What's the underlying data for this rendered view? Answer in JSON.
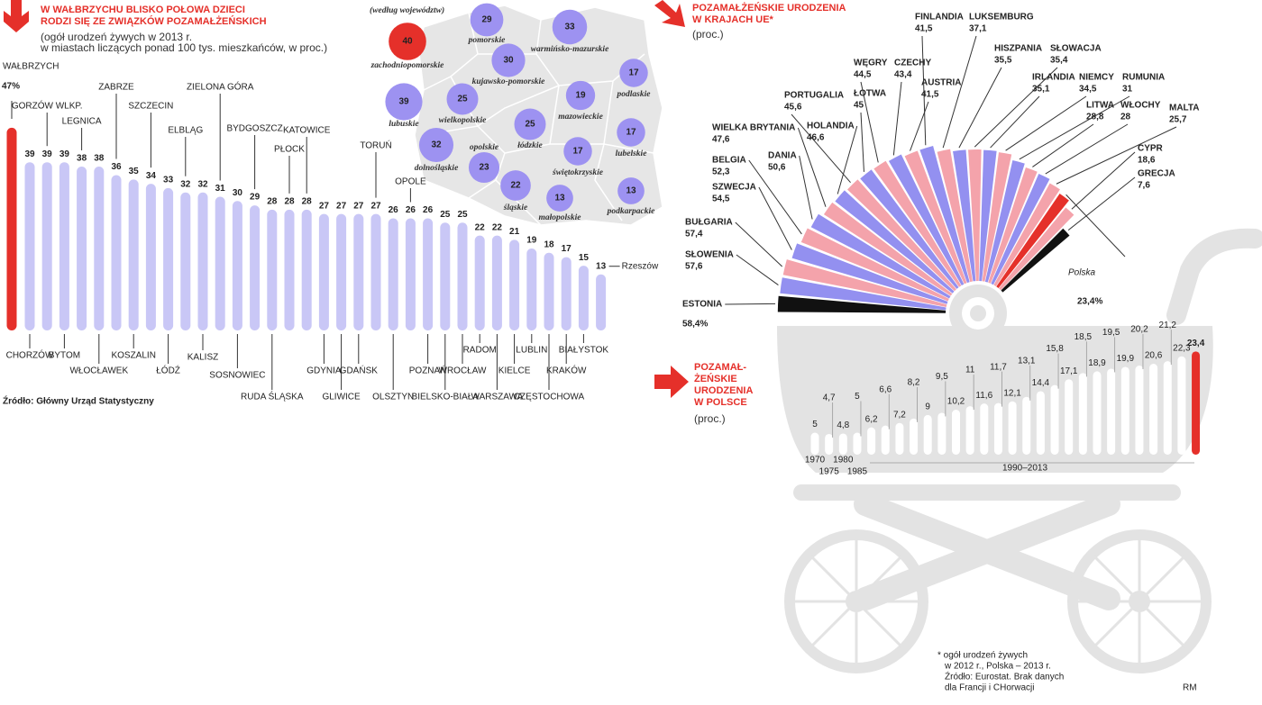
{
  "chart_data": [
    {
      "type": "bar",
      "title": [
        "W WAŁBRZYCHU BLISKO POŁOWA DZIECI",
        "RODZI SIĘ ZE ZWIĄZKÓW POZAMAŁŻEŃSKICH"
      ],
      "subtitle": [
        "(ogół urodzeń żywych w 2013 r.",
        "w miastach liczących ponad 100 tys. mieszkańców, w proc.)"
      ],
      "categories": [
        "WAŁBRZYCH",
        "CHORZÓW",
        "GORZÓW WLKP.",
        "BYTOM",
        "LEGNICA",
        "WŁOCŁAWEK",
        "ZABRZE",
        "KOSZALIN",
        "SZCZECIN",
        "ŁÓDŹ",
        "ELBLĄG",
        "KALISZ",
        "ZIELONA GÓRA",
        "SOSNOWIEC",
        "BYDGOSZCZ",
        "RUDA ŚLĄSKA",
        "PŁOCK",
        "KATOWICE",
        "GDYNIA",
        "GLIWICE",
        "GDAŃSK",
        "TORUŃ",
        "OLSZTYN",
        "OPOLE",
        "POZNAŃ",
        "BIELSKO-BIAŁA",
        "WROCŁAW",
        "RADOM",
        "WARSZAWA",
        "KIELCE",
        "LUBLIN",
        "CZĘSTOCHOWA",
        "KRAKÓW",
        "BIAŁYSTOK",
        "Rzeszów"
      ],
      "values": [
        47,
        39,
        39,
        39,
        38,
        38,
        36,
        35,
        34,
        33,
        32,
        32,
        31,
        30,
        29,
        28,
        28,
        28,
        27,
        27,
        27,
        27,
        26,
        26,
        26,
        25,
        25,
        22,
        22,
        21,
        19,
        18,
        17,
        15,
        13
      ],
      "value_labels": [
        "47%",
        "39",
        "39",
        "39",
        "38",
        "38",
        "36",
        "35",
        "34",
        "33",
        "32",
        "32",
        "31",
        "30",
        "29",
        "28",
        "28",
        "28",
        "27",
        "27",
        "27",
        "27",
        "26",
        "26",
        "26",
        "25",
        "25",
        "22",
        "22",
        "21",
        "19",
        "18",
        "17",
        "15",
        "13"
      ],
      "color": "#c9c7f6",
      "highlight": {
        "index": 0,
        "color": "#e5302a"
      },
      "source": "Źródło: Główny Urząd Statystyczny"
    },
    {
      "type": "map",
      "title": "(według województw)",
      "categories": [
        "zachodniopomorskie",
        "pomorskie",
        "warmińsko-mazurskie",
        "podlaskie",
        "kujawsko-pomorskie",
        "lubuskie",
        "wielkopolskie",
        "mazowieckie",
        "łódzkie",
        "lubelskie",
        "dolnośląskie",
        "opolskie",
        "świętokrzyskie",
        "śląskie",
        "małopolskie",
        "podkarpackie"
      ],
      "values": [
        40,
        29,
        33,
        17,
        30,
        39,
        25,
        19,
        25,
        17,
        32,
        23,
        17,
        22,
        13,
        13
      ],
      "colors": [
        "#e5302a",
        "#9d92f1",
        "#9d92f1",
        "#9d92f1",
        "#9d92f1",
        "#9d92f1",
        "#9d92f1",
        "#9d92f1",
        "#9d92f1",
        "#9d92f1",
        "#9d92f1",
        "#9d92f1",
        "#9d92f1",
        "#9d92f1",
        "#9d92f1",
        "#9d92f1"
      ]
    },
    {
      "type": "radial-bar",
      "title": [
        "POZAMAŁŻEŃSKIE URODZENIA",
        "W KRAJACH UE*"
      ],
      "subtitle": "(proc.)",
      "categories": [
        "ESTONIA",
        "SŁOWENIA",
        "BUŁGARIA",
        "SZWECJA",
        "BELGIA",
        "DANIA",
        "WIELKA BRYTANIA",
        "HOLANDIA",
        "PORTUGALIA",
        "ŁOTWA",
        "WĘGRY",
        "CZECHY",
        "AUSTRIA",
        "FINLANDIA",
        "LUKSEMBURG",
        "HISZPANIA",
        "SŁOWACJA",
        "IRLANDIA",
        "NIEMCY",
        "RUMUNIA",
        "LITWA",
        "WŁOCHY",
        "MALTA",
        "Polska",
        "CYPR",
        "GRECJA"
      ],
      "values": [
        58.4,
        57.6,
        57.4,
        54.5,
        52.3,
        50.6,
        47.6,
        46.6,
        45.6,
        45,
        44.5,
        43.4,
        41.5,
        41.5,
        37.1,
        35.5,
        35.4,
        35.1,
        34.5,
        31,
        28.8,
        28,
        25.7,
        23.4,
        18.6,
        7.6
      ],
      "value_labels": [
        "58,4%",
        "57,6",
        "57,4",
        "54,5",
        "52,3",
        "50,6",
        "47,6",
        "46,6",
        "45,6",
        "45",
        "44,5",
        "43,4",
        "41,5",
        "41,5",
        "37,1",
        "35,5",
        "35,4",
        "35,1",
        "34,5",
        "31",
        "28,8",
        "28",
        "25,7",
        "23,4%",
        "18,6",
        "7,6"
      ],
      "colors": [
        "#111111",
        "#9390f0",
        "#f4a3ab",
        "#9390f0",
        "#f4a3ab",
        "#9390f0",
        "#f4a3ab",
        "#9390f0",
        "#f4a3ab",
        "#9390f0",
        "#f4a3ab",
        "#9390f0",
        "#f4a3ab",
        "#9390f0",
        "#f4a3ab",
        "#9390f0",
        "#f4a3ab",
        "#9390f0",
        "#f4a3ab",
        "#9390f0",
        "#f4a3ab",
        "#9390f0",
        "#f4a3ab",
        "#e5302a",
        "#f4a3ab",
        "#111111"
      ]
    },
    {
      "type": "bar",
      "title": [
        "POZAMAŁ-",
        "ŻEŃSKIE",
        "URODZENIA",
        "W POLSCE"
      ],
      "subtitle": "(proc.)",
      "categories": [
        "1970",
        "1975",
        "1980",
        "1985",
        null,
        null,
        null,
        null,
        null,
        null,
        null,
        null,
        null,
        null,
        null,
        null,
        null,
        null,
        null,
        null,
        null,
        null,
        null,
        null,
        null,
        null,
        null,
        null
      ],
      "span_label": "1990–2013",
      "values": [
        5,
        4.7,
        4.8,
        5,
        6.2,
        6.6,
        7.2,
        8.2,
        9,
        9.5,
        10.2,
        11,
        11.6,
        11.7,
        12.1,
        13.1,
        14.4,
        15.8,
        17.1,
        18.5,
        18.9,
        19.5,
        19.9,
        20.2,
        20.6,
        21.2,
        22.3,
        23.4
      ],
      "value_labels": [
        "5",
        "4,7",
        "4,8",
        "5",
        "6,2",
        "6,6",
        "7,2",
        "8,2",
        "9",
        "9,5",
        "10,2",
        "11",
        "11,6",
        "11,7",
        "12,1",
        "13,1",
        "14,4",
        "15,8",
        "17,1",
        "18,5",
        "18,9",
        "19,5",
        "19,9",
        "20,2",
        "20,6",
        "21,2",
        "22,3",
        "23,4"
      ],
      "color": "#ffffff",
      "highlight": {
        "index": 27,
        "color": "#e5302a"
      }
    }
  ],
  "footnote": [
    "* ogół urodzeń żywych",
    "w 2012 r., Polska – 2013 r.",
    "Źródło: Eurostat. Brak danych",
    "dla Francji i CHorwacji"
  ],
  "credit": "RM"
}
